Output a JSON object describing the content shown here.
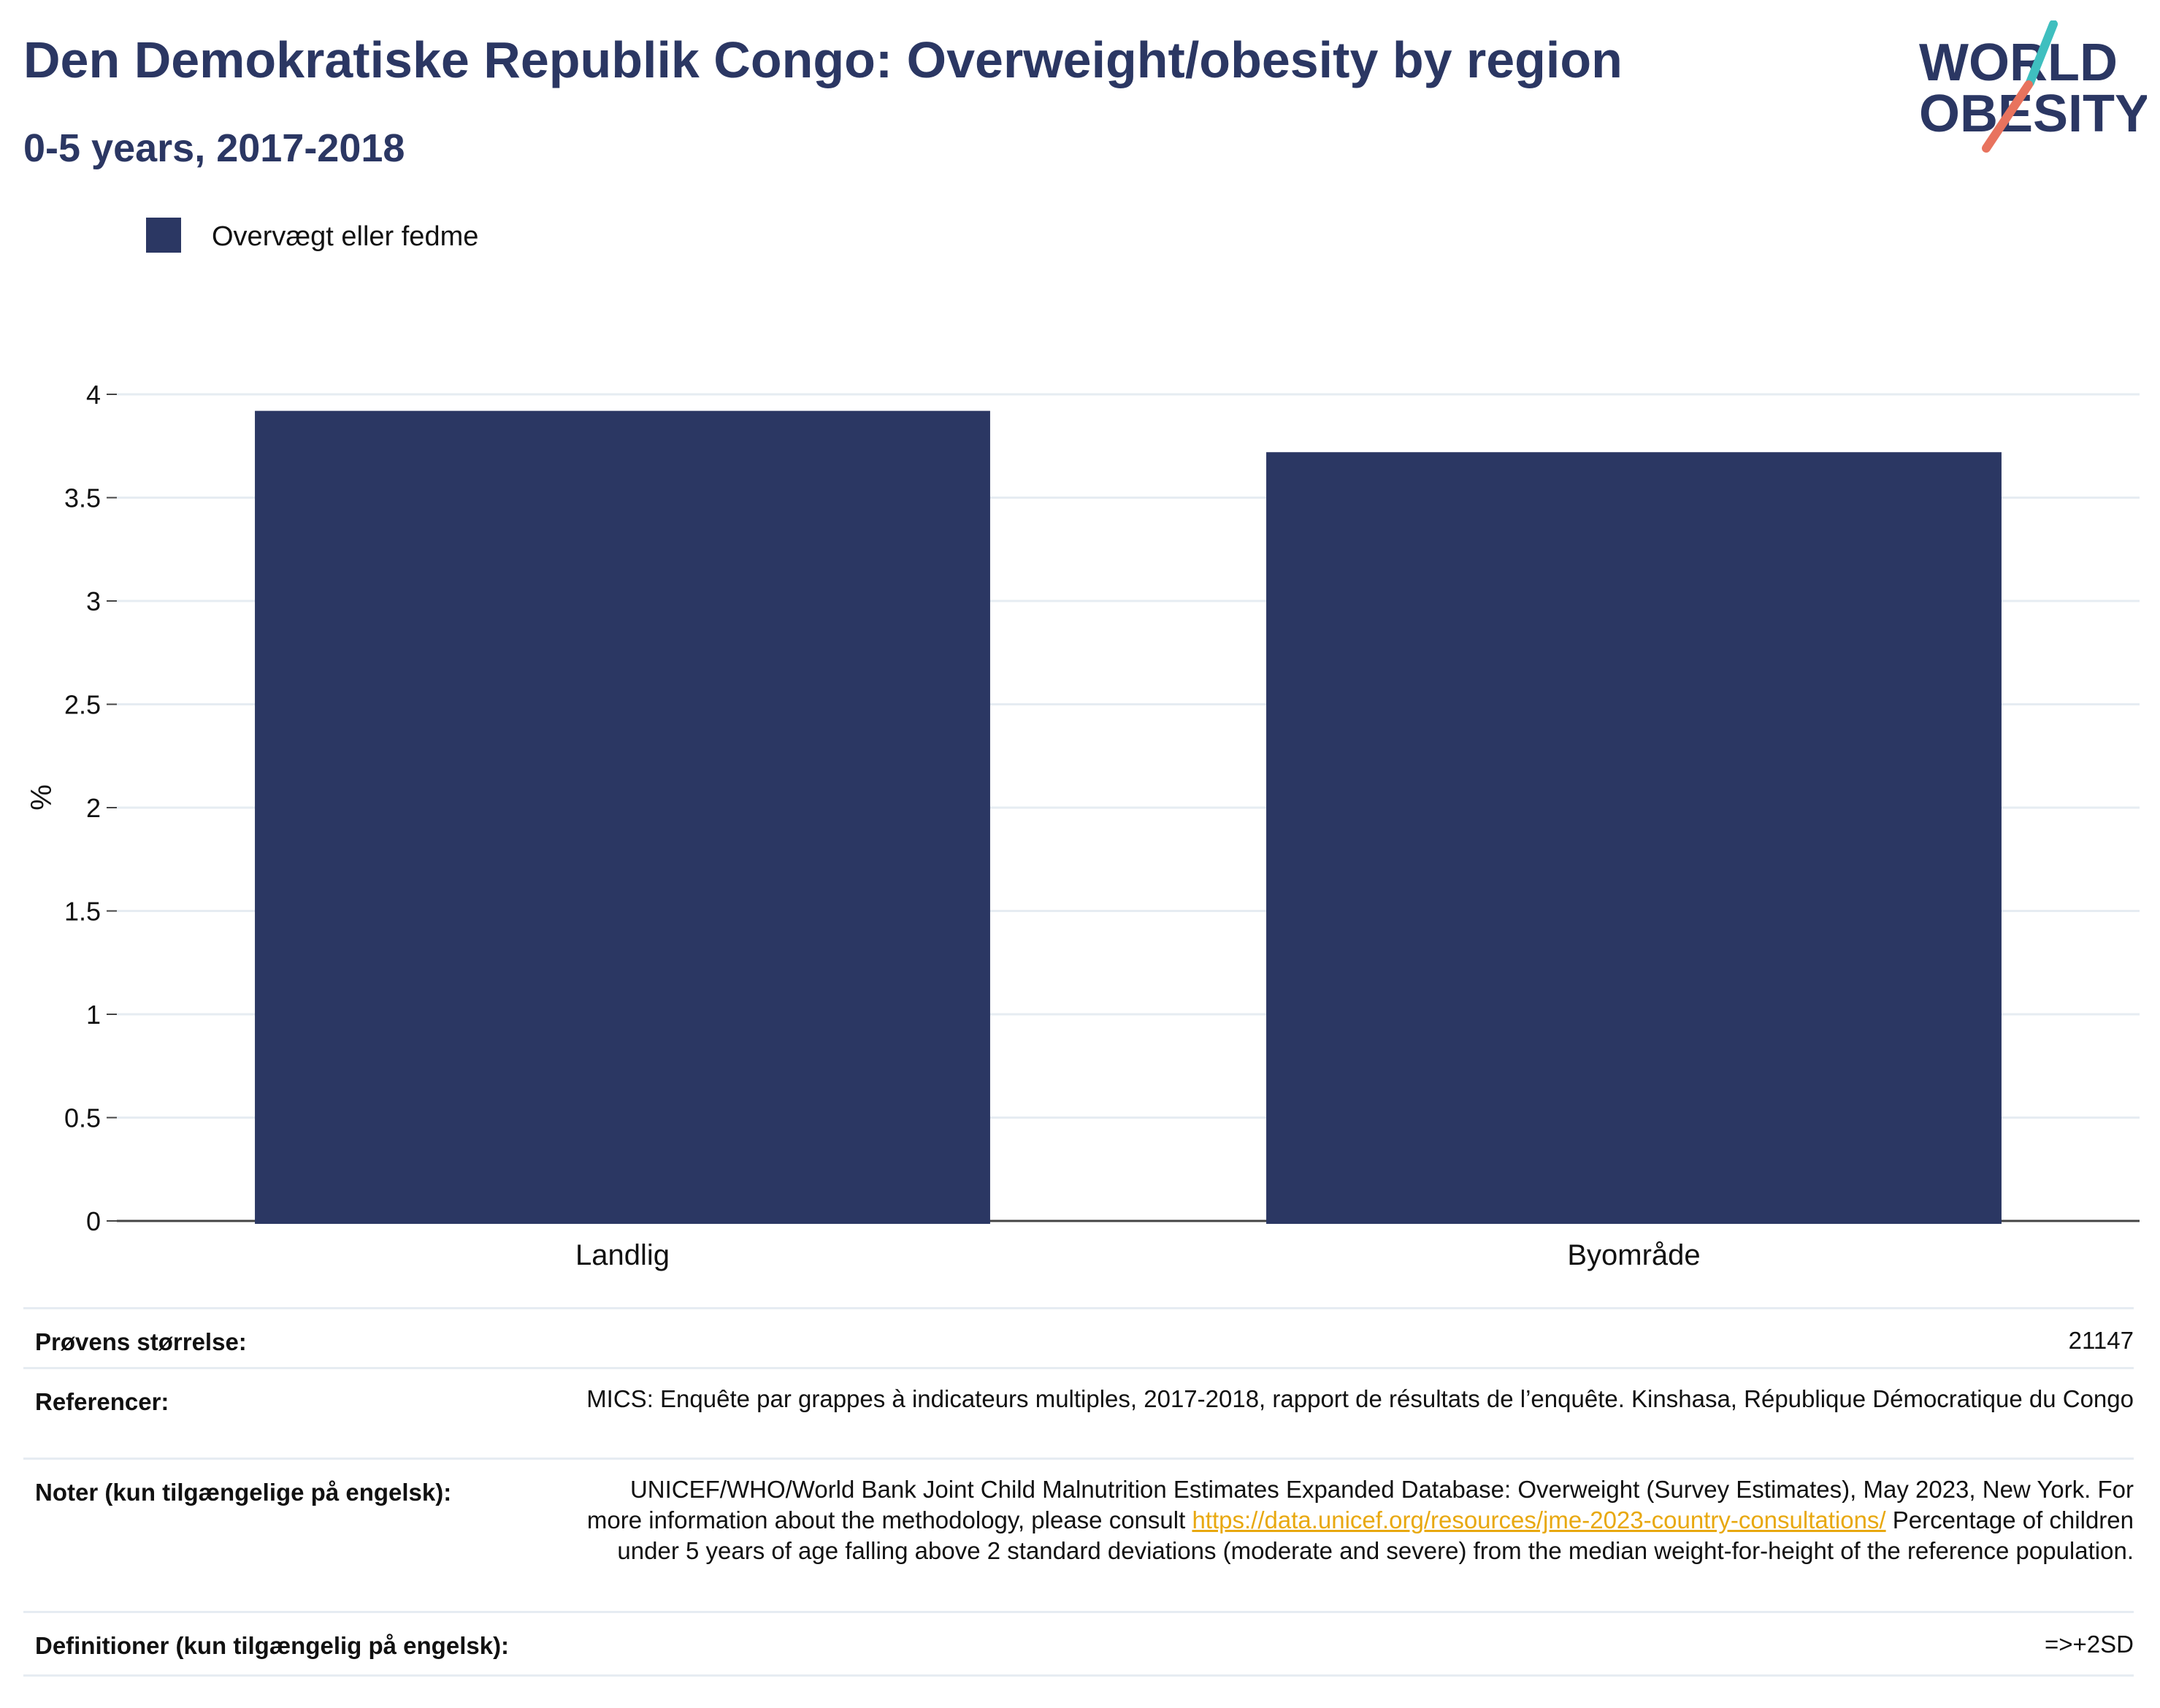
{
  "header": {
    "title": "Den Demokratiske Republik Congo: Overweight/obesity by region",
    "subtitle": "0-5 years, 2017-2018",
    "logo_line1": "WORLD",
    "logo_line2": "OBESITY"
  },
  "colors": {
    "bar": "#2b3763",
    "text": "#2b3763",
    "link": "#e8a80f",
    "logo_teal": "#3fbfbf",
    "logo_coral": "#e8735e"
  },
  "chart_data": {
    "type": "bar",
    "categories": [
      "Landlig",
      "Byområde"
    ],
    "series": [
      {
        "name": "Overvægt eller fedme",
        "values": [
          3.92,
          3.72
        ]
      }
    ],
    "ylabel": "%",
    "ylim": [
      0,
      4
    ],
    "yticks": [
      "0",
      "0.5",
      "1",
      "1.5",
      "2",
      "2.5",
      "3",
      "3.5",
      "4"
    ],
    "grid": true,
    "legend_position": "top-left"
  },
  "info": {
    "sample_label": "Prøvens størrelse:",
    "sample_value": "21147",
    "references_label": "Referencer:",
    "references_value": "MICS: Enquête par grappes à indicateurs multiples, 2017-2018, rapport de résultats de l’enquête. Kinshasa, République Démocratique du Congo",
    "notes_label": "Noter (kun tilgængelige på engelsk):",
    "notes_text_before": "UNICEF/WHO/World Bank Joint Child Malnutrition Estimates Expanded Database: Overweight (Survey Estimates), May 2023, New York. For more information about the methodology, please consult",
    "notes_link": "https://data.unicef.org/resources/jme-2023-country-consultations/",
    "notes_text_after": "Percentage of children under 5 years of age falling above 2 standard deviations (moderate and severe) from the median weight-for-height of the reference population.",
    "definitions_label": "Definitioner (kun tilgængelig på engelsk):",
    "definitions_value": "=>+2SD"
  }
}
